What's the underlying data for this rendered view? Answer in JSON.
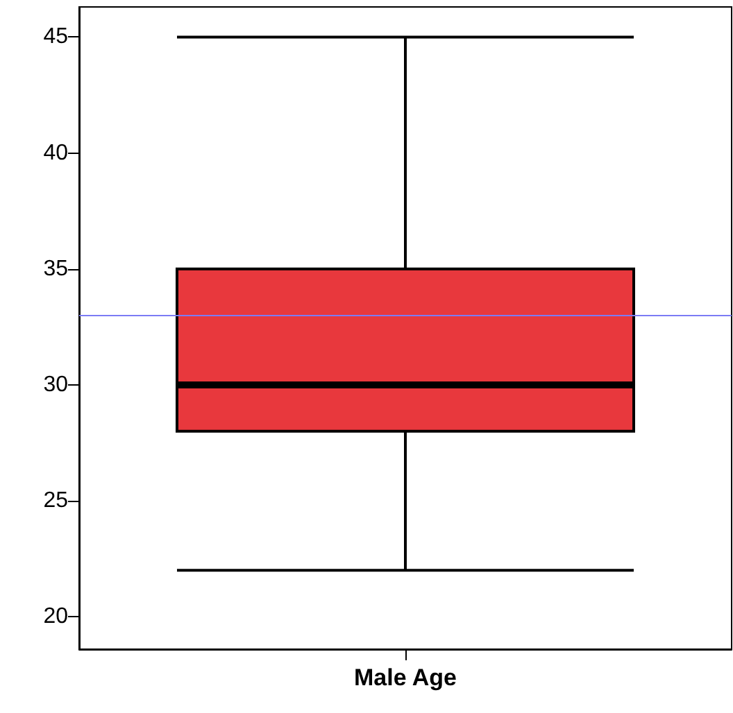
{
  "chart_data": {
    "type": "box",
    "categories": [
      "Male Age"
    ],
    "color": "#e8383d",
    "boxes": [
      {
        "low": 22,
        "q1": 28,
        "median": 30,
        "q3": 35,
        "high": 45
      }
    ],
    "ylim": [
      18.6,
      46.3
    ],
    "yticks": [
      20,
      25,
      30,
      35,
      40,
      45
    ],
    "ref_lines": [
      {
        "axis": "y",
        "value": 33,
        "color": "#7b7bf5"
      }
    ]
  }
}
